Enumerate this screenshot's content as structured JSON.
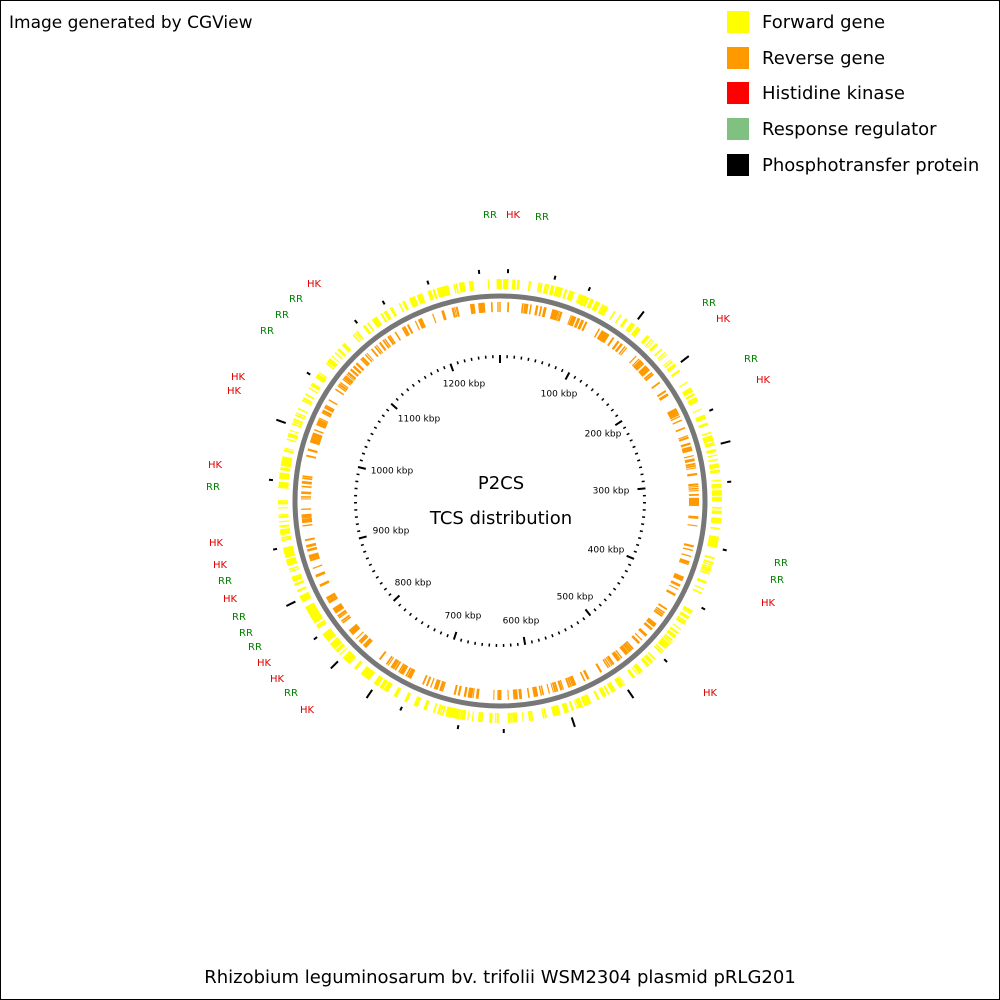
{
  "header": {
    "credit": "Image generated by CGView"
  },
  "legend": [
    "Forward gene",
    "Reverse gene",
    "Histidine kinase",
    "Response regulator",
    "Phosphotransfer protein"
  ],
  "center": {
    "title": "P2CS",
    "subtitle": "TCS distribution"
  },
  "ruler_labels": [
    "100 kbp",
    "200 kbp",
    "300 kbp",
    "400 kbp",
    "500 kbp",
    "600 kbp",
    "700 kbp",
    "800 kbp",
    "900 kbp",
    "1000 kbp",
    "1100 kbp",
    "1200 kbp"
  ],
  "callouts": [
    "RR",
    "HK",
    "RR",
    "RR",
    "HK",
    "RR",
    "HK",
    "RR",
    "RR",
    "HK",
    "HK",
    "HK",
    "RR",
    "RR",
    "RR",
    "HK",
    "HK",
    "HK",
    "RR",
    "HK",
    "HK",
    "RR",
    "HK",
    "RR",
    "RR",
    "RR",
    "HK",
    "HK",
    "RR",
    "HK"
  ],
  "footer": {
    "caption": "Rhizobium leguminosarum bv. trifolii WSM2304 plasmid pRLG201"
  }
}
